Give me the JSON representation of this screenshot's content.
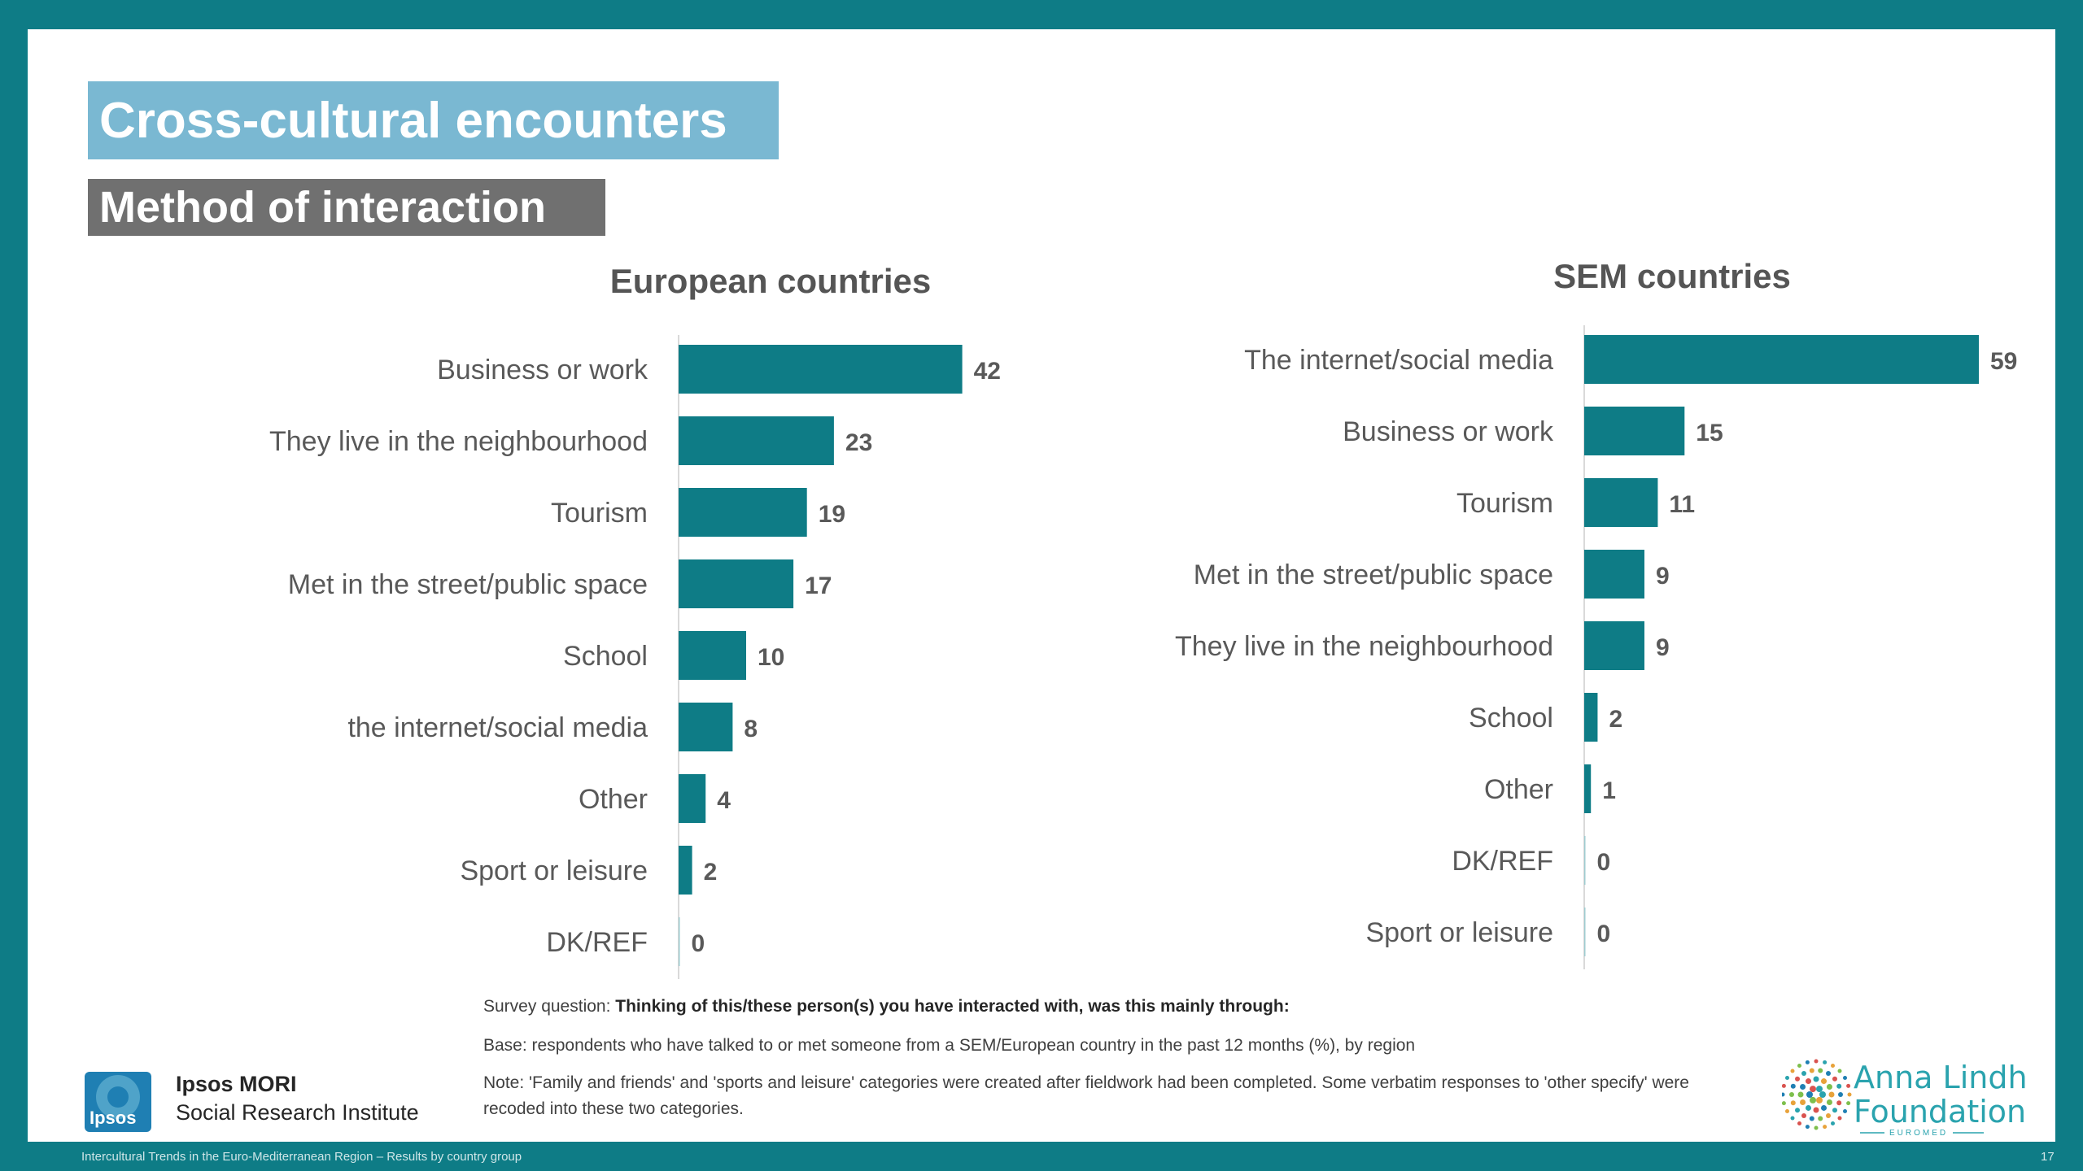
{
  "slide": {
    "title": "Cross-cultural encounters",
    "subtitle": "Method of interaction"
  },
  "chart_data": [
    {
      "type": "bar",
      "orientation": "horizontal",
      "title": "European countries",
      "categories": [
        "Business or work",
        "They live in the neighbourhood",
        "Tourism",
        "Met in the street/public space",
        "School",
        "the internet/social media",
        "Other",
        "Sport or leisure",
        "DK/REF"
      ],
      "values": [
        42,
        23,
        19,
        17,
        10,
        8,
        4,
        2,
        0
      ],
      "xlim": [
        0,
        60
      ],
      "color": "#0E7C86",
      "grid": false
    },
    {
      "type": "bar",
      "orientation": "horizontal",
      "title": "SEM countries",
      "categories": [
        "The internet/social media",
        "Business or work",
        "Tourism",
        "Met in the street/public space",
        "They live in the neighbourhood",
        "School",
        "Other",
        "DK/REF",
        "Sport or leisure"
      ],
      "values": [
        59,
        15,
        11,
        9,
        9,
        2,
        1,
        0,
        0
      ],
      "xlim": [
        0,
        60
      ],
      "color": "#0E7C86",
      "grid": false
    }
  ],
  "footnotes": {
    "question_prefix": "Survey question: ",
    "question_text": "Thinking of this/these person(s) you have interacted with, was this mainly through:",
    "base": "Base: respondents who have talked to or met someone from a SEM/European country in the past 12 months (%), by region",
    "note": "Note: 'Family and friends' and 'sports and leisure' categories were created after fieldwork had been completed. Some verbatim responses to 'other specify' were recoded into these two categories."
  },
  "branding": {
    "ipsos_logo_text": "Ipsos",
    "org_name": "Ipsos MORI",
    "org_sub": "Social Research Institute",
    "alf_line1": "Anna Lindh",
    "alf_line2": "Foundation",
    "alf_sub": "EUROMED"
  },
  "footer": {
    "left_text": "Intercultural Trends in the Euro-Mediterranean Region – Results by country group",
    "page_number": "17"
  },
  "colors": {
    "frame": "#0E7C86",
    "bar": "#0E7C86",
    "title_bg": "#7AB8D2",
    "subtitle_bg": "#707070"
  }
}
